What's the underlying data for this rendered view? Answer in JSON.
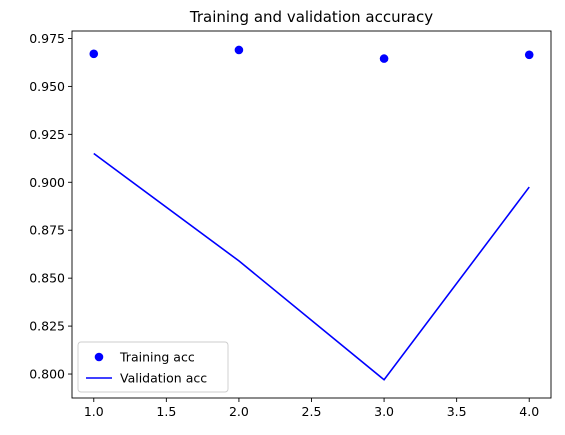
{
  "chart_data": {
    "type": "line",
    "title": "Training and validation accuracy",
    "xlabel": "",
    "ylabel": "",
    "xlim": [
      0.85,
      4.15
    ],
    "ylim": [
      0.7875,
      0.9789
    ],
    "x_ticks": [
      1.0,
      1.5,
      2.0,
      2.5,
      3.0,
      3.5,
      4.0
    ],
    "x_tick_labels": [
      "1.0",
      "1.5",
      "2.0",
      "2.5",
      "3.0",
      "3.5",
      "4.0"
    ],
    "y_ticks": [
      0.8,
      0.825,
      0.85,
      0.875,
      0.9,
      0.925,
      0.95,
      0.975
    ],
    "y_tick_labels": [
      "0.800",
      "0.825",
      "0.850",
      "0.875",
      "0.900",
      "0.925",
      "0.950",
      "0.975"
    ],
    "grid": false,
    "legend": {
      "position": "lower-left"
    },
    "series": [
      {
        "name": "Training acc",
        "style": "points",
        "color": "#0000ff",
        "x": [
          1,
          2,
          3,
          4
        ],
        "y": [
          0.967,
          0.969,
          0.9645,
          0.9665
        ]
      },
      {
        "name": "Validation acc",
        "style": "line",
        "color": "#0000ff",
        "x": [
          1,
          2,
          3,
          4
        ],
        "y": [
          0.915,
          0.859,
          0.797,
          0.8975
        ]
      }
    ]
  }
}
